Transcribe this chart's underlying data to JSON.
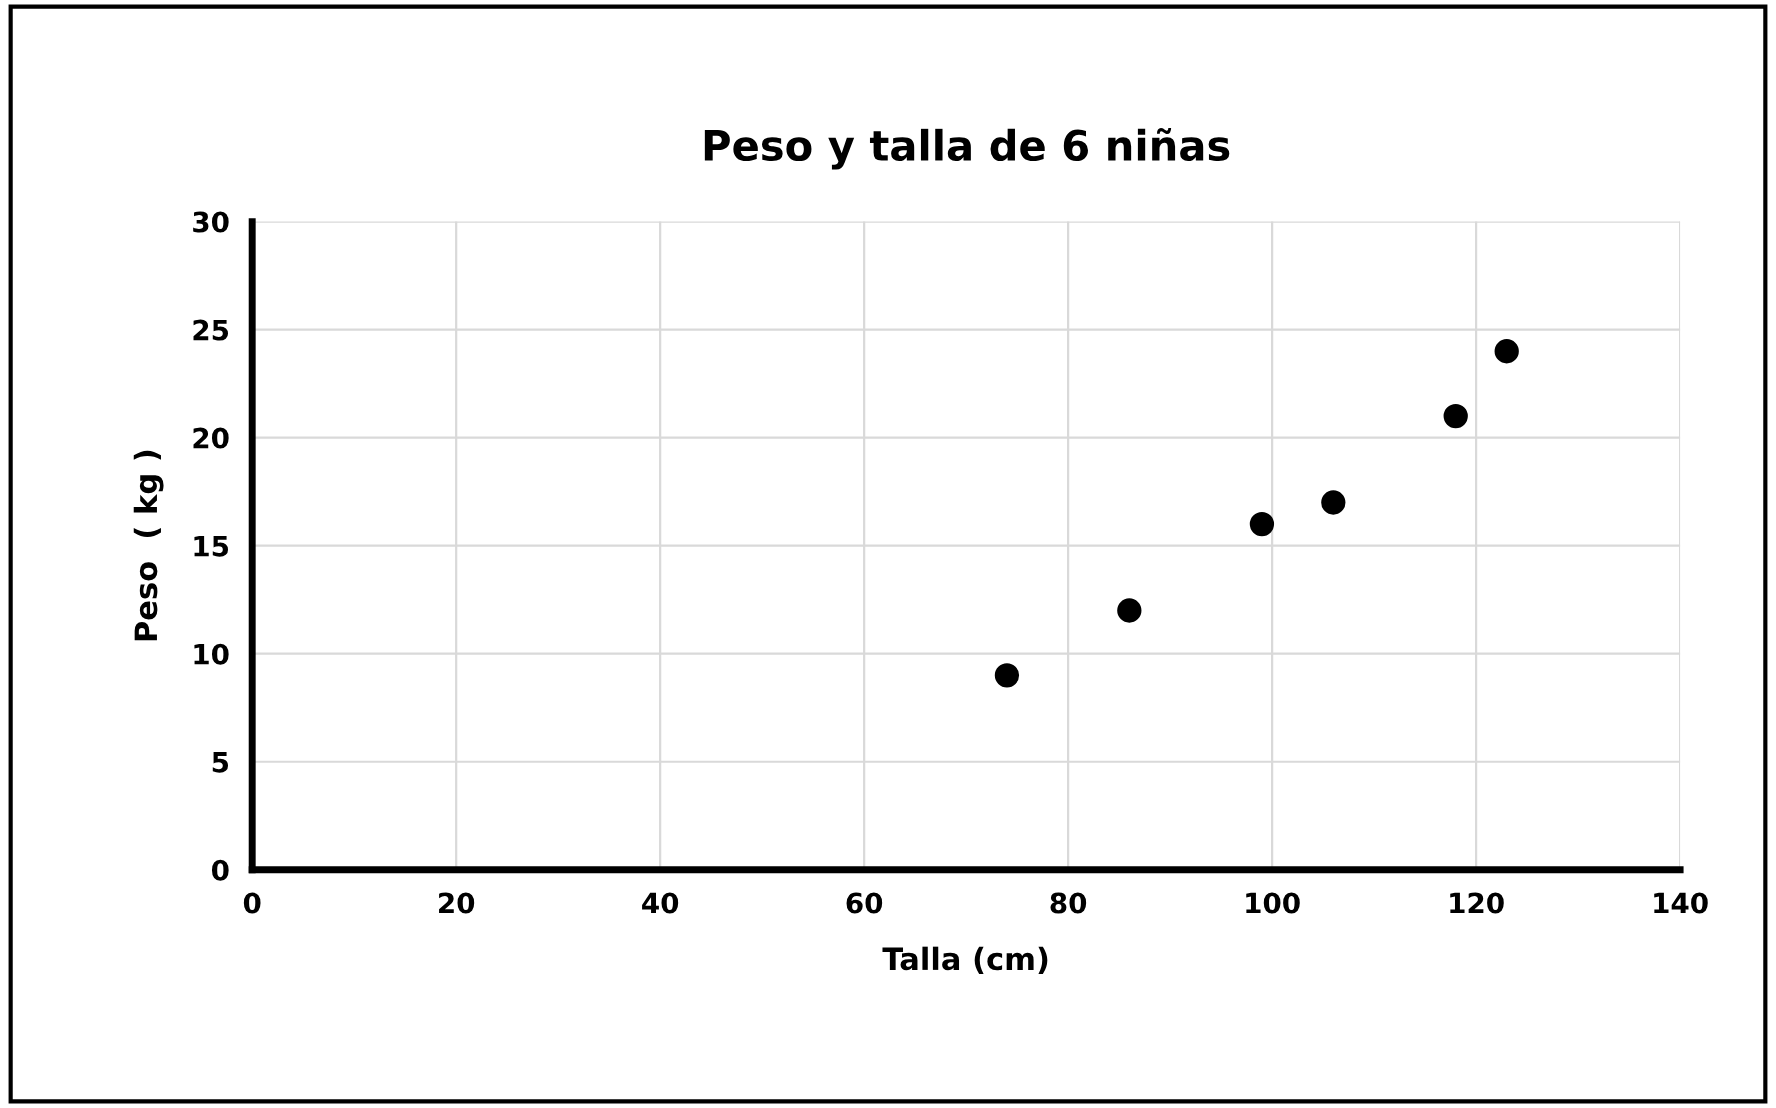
{
  "chart_data": {
    "type": "scatter",
    "title": "Peso y talla de 6 niñas",
    "xlabel": "Talla (cm)",
    "ylabel": "Peso  ( kg )",
    "x": [
      74,
      86,
      99,
      106,
      118,
      123
    ],
    "series": [
      {
        "color": "#000000",
        "values": [
          9,
          12,
          16,
          17,
          21,
          24
        ]
      }
    ],
    "xlim": [
      0,
      140
    ],
    "xticks": [
      0,
      20,
      40,
      60,
      80,
      100,
      120,
      140
    ],
    "ylim": [
      0,
      30
    ],
    "yticks": [
      0,
      5,
      10,
      15,
      20,
      25,
      30
    ],
    "grid": true,
    "marker": "circle"
  }
}
